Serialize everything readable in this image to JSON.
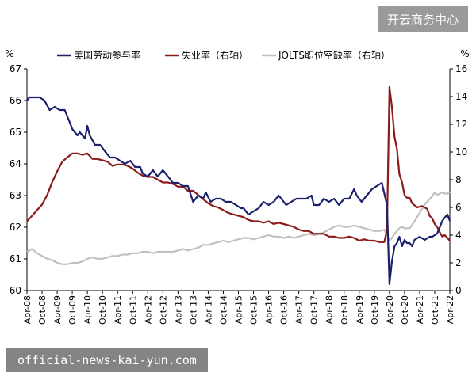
{
  "watermark_top": "开云商务中心",
  "watermark_bottom": "official-news-kai-yun.com",
  "chart_data": {
    "type": "line",
    "title": "",
    "left_unit": "%",
    "right_unit": "%",
    "y_left_range": [
      60,
      67
    ],
    "y_right_range": [
      0,
      16
    ],
    "y_left_ticks": [
      60,
      61,
      62,
      63,
      64,
      65,
      66,
      67
    ],
    "y_right_ticks": [
      0,
      2,
      4,
      6,
      8,
      10,
      12,
      14,
      16
    ],
    "x_range": [
      2008.25,
      2022.25
    ],
    "x_tick_labels": [
      "Apr-08",
      "Oct-08",
      "Apr-09",
      "Oct-09",
      "Apr-10",
      "Oct-10",
      "Apr-11",
      "Oct-11",
      "Apr-12",
      "Oct-12",
      "Apr-13",
      "Oct-13",
      "Apr-14",
      "Oct-14",
      "Apr-15",
      "Oct-15",
      "Apr-16",
      "Oct-16",
      "Apr-17",
      "Oct-17",
      "Apr-18",
      "Oct-18",
      "Apr-19",
      "Oct-19",
      "Apr-20",
      "Oct-20",
      "Apr-21",
      "Oct-21",
      "Apr-22"
    ],
    "legend_position": "top",
    "grid": false,
    "series": [
      {
        "name": "美国劳动参与率",
        "axis": "left",
        "color": "#1a1f6e",
        "points": [
          [
            2008.25,
            66.0
          ],
          [
            2008.33,
            66.1
          ],
          [
            2008.5,
            66.1
          ],
          [
            2008.67,
            66.1
          ],
          [
            2008.83,
            66.0
          ],
          [
            2009.0,
            65.7
          ],
          [
            2009.17,
            65.8
          ],
          [
            2009.33,
            65.7
          ],
          [
            2009.5,
            65.7
          ],
          [
            2009.67,
            65.3
          ],
          [
            2009.75,
            65.1
          ],
          [
            2009.92,
            64.9
          ],
          [
            2010.0,
            65.0
          ],
          [
            2010.17,
            64.8
          ],
          [
            2010.25,
            65.2
          ],
          [
            2010.33,
            64.9
          ],
          [
            2010.5,
            64.6
          ],
          [
            2010.67,
            64.6
          ],
          [
            2010.83,
            64.4
          ],
          [
            2011.0,
            64.2
          ],
          [
            2011.17,
            64.2
          ],
          [
            2011.33,
            64.1
          ],
          [
            2011.5,
            64.0
          ],
          [
            2011.67,
            64.1
          ],
          [
            2011.83,
            63.9
          ],
          [
            2012.0,
            63.9
          ],
          [
            2012.08,
            63.7
          ],
          [
            2012.25,
            63.6
          ],
          [
            2012.42,
            63.8
          ],
          [
            2012.58,
            63.6
          ],
          [
            2012.75,
            63.8
          ],
          [
            2012.92,
            63.6
          ],
          [
            2013.08,
            63.4
          ],
          [
            2013.25,
            63.4
          ],
          [
            2013.42,
            63.3
          ],
          [
            2013.58,
            63.3
          ],
          [
            2013.75,
            62.8
          ],
          [
            2013.92,
            63.0
          ],
          [
            2014.08,
            62.9
          ],
          [
            2014.17,
            63.1
          ],
          [
            2014.33,
            62.8
          ],
          [
            2014.5,
            62.9
          ],
          [
            2014.67,
            62.9
          ],
          [
            2014.83,
            62.8
          ],
          [
            2015.0,
            62.8
          ],
          [
            2015.17,
            62.7
          ],
          [
            2015.33,
            62.6
          ],
          [
            2015.42,
            62.6
          ],
          [
            2015.58,
            62.4
          ],
          [
            2015.75,
            62.5
          ],
          [
            2015.92,
            62.6
          ],
          [
            2016.08,
            62.8
          ],
          [
            2016.25,
            62.7
          ],
          [
            2016.42,
            62.8
          ],
          [
            2016.58,
            63.0
          ],
          [
            2016.67,
            62.9
          ],
          [
            2016.83,
            62.7
          ],
          [
            2017.0,
            62.8
          ],
          [
            2017.17,
            62.9
          ],
          [
            2017.33,
            62.9
          ],
          [
            2017.5,
            62.9
          ],
          [
            2017.67,
            63.0
          ],
          [
            2017.75,
            62.7
          ],
          [
            2017.92,
            62.7
          ],
          [
            2018.08,
            62.9
          ],
          [
            2018.25,
            62.8
          ],
          [
            2018.42,
            62.9
          ],
          [
            2018.58,
            62.7
          ],
          [
            2018.75,
            62.9
          ],
          [
            2018.92,
            62.9
          ],
          [
            2019.08,
            63.2
          ],
          [
            2019.17,
            63.0
          ],
          [
            2019.33,
            62.8
          ],
          [
            2019.5,
            63.0
          ],
          [
            2019.67,
            63.2
          ],
          [
            2019.83,
            63.3
          ],
          [
            2020.0,
            63.4
          ],
          [
            2020.17,
            62.7
          ],
          [
            2020.25,
            60.2
          ],
          [
            2020.33,
            60.9
          ],
          [
            2020.42,
            61.4
          ],
          [
            2020.5,
            61.5
          ],
          [
            2020.58,
            61.7
          ],
          [
            2020.67,
            61.4
          ],
          [
            2020.75,
            61.6
          ],
          [
            2020.83,
            61.5
          ],
          [
            2020.92,
            61.5
          ],
          [
            2021.0,
            61.4
          ],
          [
            2021.08,
            61.6
          ],
          [
            2021.25,
            61.7
          ],
          [
            2021.42,
            61.6
          ],
          [
            2021.58,
            61.7
          ],
          [
            2021.67,
            61.7
          ],
          [
            2021.83,
            61.8
          ],
          [
            2021.92,
            62.0
          ],
          [
            2022.0,
            62.2
          ],
          [
            2022.08,
            62.3
          ],
          [
            2022.17,
            62.4
          ],
          [
            2022.25,
            62.2
          ]
        ]
      },
      {
        "name": "失业率（右轴）",
        "axis": "right",
        "color": "#8b1a1a",
        "points": [
          [
            2008.25,
            5.0
          ],
          [
            2008.42,
            5.4
          ],
          [
            2008.58,
            5.8
          ],
          [
            2008.75,
            6.2
          ],
          [
            2008.92,
            6.9
          ],
          [
            2009.08,
            7.8
          ],
          [
            2009.25,
            8.6
          ],
          [
            2009.42,
            9.3
          ],
          [
            2009.58,
            9.6
          ],
          [
            2009.75,
            9.9
          ],
          [
            2009.92,
            9.9
          ],
          [
            2010.08,
            9.8
          ],
          [
            2010.25,
            9.9
          ],
          [
            2010.42,
            9.5
          ],
          [
            2010.58,
            9.5
          ],
          [
            2010.75,
            9.4
          ],
          [
            2010.92,
            9.3
          ],
          [
            2011.08,
            9.0
          ],
          [
            2011.25,
            9.1
          ],
          [
            2011.42,
            9.1
          ],
          [
            2011.58,
            9.0
          ],
          [
            2011.75,
            8.8
          ],
          [
            2011.92,
            8.5
          ],
          [
            2012.08,
            8.3
          ],
          [
            2012.25,
            8.2
          ],
          [
            2012.42,
            8.2
          ],
          [
            2012.58,
            8.0
          ],
          [
            2012.75,
            7.8
          ],
          [
            2012.92,
            7.8
          ],
          [
            2013.08,
            7.7
          ],
          [
            2013.25,
            7.5
          ],
          [
            2013.42,
            7.5
          ],
          [
            2013.58,
            7.2
          ],
          [
            2013.75,
            7.2
          ],
          [
            2013.92,
            6.9
          ],
          [
            2014.08,
            6.6
          ],
          [
            2014.25,
            6.3
          ],
          [
            2014.42,
            6.1
          ],
          [
            2014.58,
            6.0
          ],
          [
            2014.75,
            5.8
          ],
          [
            2014.92,
            5.6
          ],
          [
            2015.08,
            5.5
          ],
          [
            2015.25,
            5.4
          ],
          [
            2015.42,
            5.3
          ],
          [
            2015.58,
            5.1
          ],
          [
            2015.75,
            5.0
          ],
          [
            2015.92,
            5.0
          ],
          [
            2016.08,
            4.9
          ],
          [
            2016.25,
            5.0
          ],
          [
            2016.42,
            4.8
          ],
          [
            2016.58,
            4.9
          ],
          [
            2016.75,
            4.8
          ],
          [
            2016.92,
            4.7
          ],
          [
            2017.08,
            4.6
          ],
          [
            2017.25,
            4.4
          ],
          [
            2017.42,
            4.3
          ],
          [
            2017.58,
            4.3
          ],
          [
            2017.75,
            4.1
          ],
          [
            2017.92,
            4.1
          ],
          [
            2018.08,
            4.1
          ],
          [
            2018.25,
            3.9
          ],
          [
            2018.42,
            3.9
          ],
          [
            2018.58,
            3.8
          ],
          [
            2018.75,
            3.8
          ],
          [
            2018.92,
            3.9
          ],
          [
            2019.08,
            3.8
          ],
          [
            2019.25,
            3.6
          ],
          [
            2019.42,
            3.7
          ],
          [
            2019.58,
            3.6
          ],
          [
            2019.75,
            3.6
          ],
          [
            2019.92,
            3.5
          ],
          [
            2020.08,
            3.5
          ],
          [
            2020.17,
            4.4
          ],
          [
            2020.25,
            14.7
          ],
          [
            2020.33,
            13.3
          ],
          [
            2020.42,
            11.1
          ],
          [
            2020.5,
            10.2
          ],
          [
            2020.58,
            8.4
          ],
          [
            2020.67,
            7.8
          ],
          [
            2020.75,
            6.9
          ],
          [
            2020.83,
            6.7
          ],
          [
            2020.92,
            6.7
          ],
          [
            2021.0,
            6.3
          ],
          [
            2021.17,
            6.0
          ],
          [
            2021.33,
            6.1
          ],
          [
            2021.5,
            5.9
          ],
          [
            2021.58,
            5.4
          ],
          [
            2021.67,
            5.2
          ],
          [
            2021.75,
            4.8
          ],
          [
            2021.83,
            4.6
          ],
          [
            2021.92,
            4.2
          ],
          [
            2022.0,
            3.9
          ],
          [
            2022.08,
            4.0
          ],
          [
            2022.17,
            3.8
          ],
          [
            2022.25,
            3.6
          ]
        ]
      },
      {
        "name": "JOLTS职位空缺率（右轴）",
        "axis": "right",
        "color": "#c0c0c0",
        "points": [
          [
            2008.25,
            2.8
          ],
          [
            2008.42,
            3.0
          ],
          [
            2008.58,
            2.7
          ],
          [
            2008.75,
            2.5
          ],
          [
            2008.92,
            2.3
          ],
          [
            2009.08,
            2.2
          ],
          [
            2009.25,
            2.0
          ],
          [
            2009.42,
            1.9
          ],
          [
            2009.58,
            1.9
          ],
          [
            2009.75,
            2.0
          ],
          [
            2009.92,
            2.0
          ],
          [
            2010.08,
            2.1
          ],
          [
            2010.25,
            2.3
          ],
          [
            2010.42,
            2.4
          ],
          [
            2010.58,
            2.3
          ],
          [
            2010.75,
            2.3
          ],
          [
            2010.92,
            2.4
          ],
          [
            2011.08,
            2.5
          ],
          [
            2011.25,
            2.5
          ],
          [
            2011.42,
            2.6
          ],
          [
            2011.58,
            2.6
          ],
          [
            2011.75,
            2.7
          ],
          [
            2011.92,
            2.7
          ],
          [
            2012.08,
            2.8
          ],
          [
            2012.25,
            2.8
          ],
          [
            2012.42,
            2.7
          ],
          [
            2012.58,
            2.8
          ],
          [
            2012.75,
            2.8
          ],
          [
            2012.92,
            2.8
          ],
          [
            2013.08,
            2.8
          ],
          [
            2013.25,
            2.9
          ],
          [
            2013.42,
            3.0
          ],
          [
            2013.58,
            2.9
          ],
          [
            2013.75,
            3.0
          ],
          [
            2013.92,
            3.1
          ],
          [
            2014.08,
            3.3
          ],
          [
            2014.25,
            3.3
          ],
          [
            2014.42,
            3.4
          ],
          [
            2014.58,
            3.5
          ],
          [
            2014.75,
            3.6
          ],
          [
            2014.92,
            3.5
          ],
          [
            2015.08,
            3.6
          ],
          [
            2015.25,
            3.7
          ],
          [
            2015.42,
            3.8
          ],
          [
            2015.58,
            3.8
          ],
          [
            2015.75,
            3.7
          ],
          [
            2015.92,
            3.8
          ],
          [
            2016.08,
            3.9
          ],
          [
            2016.25,
            4.0
          ],
          [
            2016.42,
            3.9
          ],
          [
            2016.58,
            3.9
          ],
          [
            2016.75,
            3.8
          ],
          [
            2016.92,
            3.9
          ],
          [
            2017.08,
            3.8
          ],
          [
            2017.25,
            3.9
          ],
          [
            2017.42,
            4.0
          ],
          [
            2017.58,
            4.1
          ],
          [
            2017.75,
            4.0
          ],
          [
            2017.92,
            4.1
          ],
          [
            2018.08,
            4.2
          ],
          [
            2018.25,
            4.4
          ],
          [
            2018.42,
            4.6
          ],
          [
            2018.58,
            4.7
          ],
          [
            2018.75,
            4.6
          ],
          [
            2018.92,
            4.6
          ],
          [
            2019.08,
            4.7
          ],
          [
            2019.25,
            4.6
          ],
          [
            2019.42,
            4.5
          ],
          [
            2019.58,
            4.4
          ],
          [
            2019.75,
            4.3
          ],
          [
            2019.92,
            4.3
          ],
          [
            2020.08,
            4.4
          ],
          [
            2020.17,
            4.0
          ],
          [
            2020.25,
            3.6
          ],
          [
            2020.33,
            3.8
          ],
          [
            2020.42,
            4.1
          ],
          [
            2020.5,
            4.3
          ],
          [
            2020.58,
            4.5
          ],
          [
            2020.67,
            4.6
          ],
          [
            2020.75,
            4.5
          ],
          [
            2020.83,
            4.5
          ],
          [
            2020.92,
            4.5
          ],
          [
            2021.08,
            5.0
          ],
          [
            2021.25,
            5.6
          ],
          [
            2021.42,
            6.2
          ],
          [
            2021.58,
            6.6
          ],
          [
            2021.67,
            6.8
          ],
          [
            2021.75,
            7.1
          ],
          [
            2021.83,
            6.9
          ],
          [
            2021.92,
            7.0
          ],
          [
            2022.0,
            7.1
          ],
          [
            2022.08,
            7.0
          ],
          [
            2022.17,
            7.0
          ],
          [
            2022.25,
            7.1
          ]
        ]
      }
    ]
  }
}
